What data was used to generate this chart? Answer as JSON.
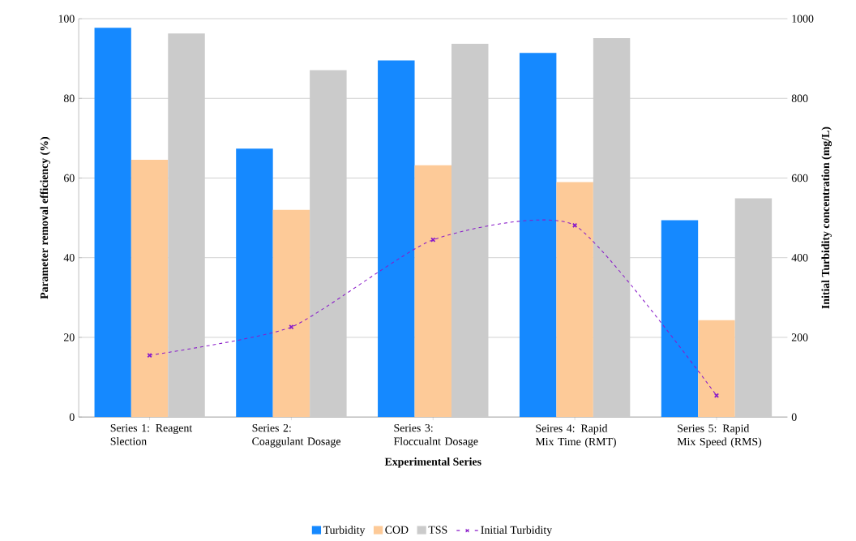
{
  "chart_data": {
    "type": "bar",
    "xlabel": "Experimental Series",
    "ylabel": "Parameter removal efficiency (%)",
    "y2label": "Initial Turbidity concentration (mg/L)",
    "categories": [
      "Series 1: Reagent Slection",
      "Series 2: Coaggulant Dosage",
      "Series 3: Floccualnt Dosage",
      "Seires 4: Rapid Mix Time (RMT)",
      "Series 5: Rapid Mix Speed (RMS)"
    ],
    "series": [
      {
        "name": "Turbidity",
        "color": "#1589ff",
        "values": [
          97.7,
          67.4,
          89.5,
          91.4,
          49.4
        ]
      },
      {
        "name": "COD",
        "color": "#fdca98",
        "values": [
          64.6,
          52.0,
          63.2,
          59.0,
          24.3
        ]
      },
      {
        "name": "TSS",
        "color": "#cbcbcb",
        "values": [
          96.3,
          87.1,
          93.7,
          95.1,
          54.9
        ]
      },
      {
        "name": "Initial Turbidity",
        "type": "line",
        "axis": "y2",
        "color": "#8a1cc9",
        "marker": "cross",
        "line_style": "dashed",
        "values": [
          155,
          226,
          445,
          481,
          54
        ]
      }
    ],
    "ylim": [
      0,
      100
    ],
    "yticks": [
      0,
      20,
      40,
      60,
      80,
      100
    ],
    "y2lim": [
      0,
      1000
    ],
    "y2ticks": [
      0,
      200,
      400,
      600,
      800,
      1000
    ],
    "grid": "y",
    "legend": "bottom"
  }
}
